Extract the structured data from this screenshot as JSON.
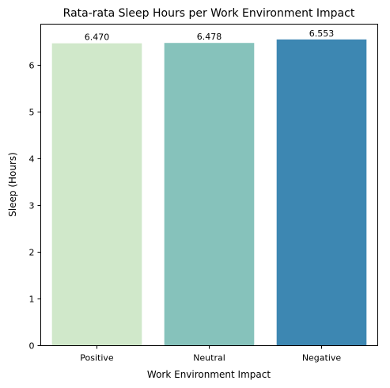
{
  "chart_data": {
    "type": "bar",
    "title": "Rata-rata Sleep Hours per Work Environment Impact",
    "xlabel": "Work Environment Impact",
    "ylabel": "Sleep (Hours)",
    "categories": [
      "Positive",
      "Neutral",
      "Negative"
    ],
    "values": [
      6.47,
      6.478,
      6.553
    ],
    "value_labels": [
      "6.470",
      "6.478",
      "6.553"
    ],
    "bar_colors": [
      "#d0e8ca",
      "#86c2bb",
      "#3d87b2"
    ],
    "ylim": [
      0,
      6.88
    ],
    "yticks": [
      0,
      1,
      2,
      3,
      4,
      5,
      6
    ],
    "grid": false,
    "legend": "none"
  }
}
